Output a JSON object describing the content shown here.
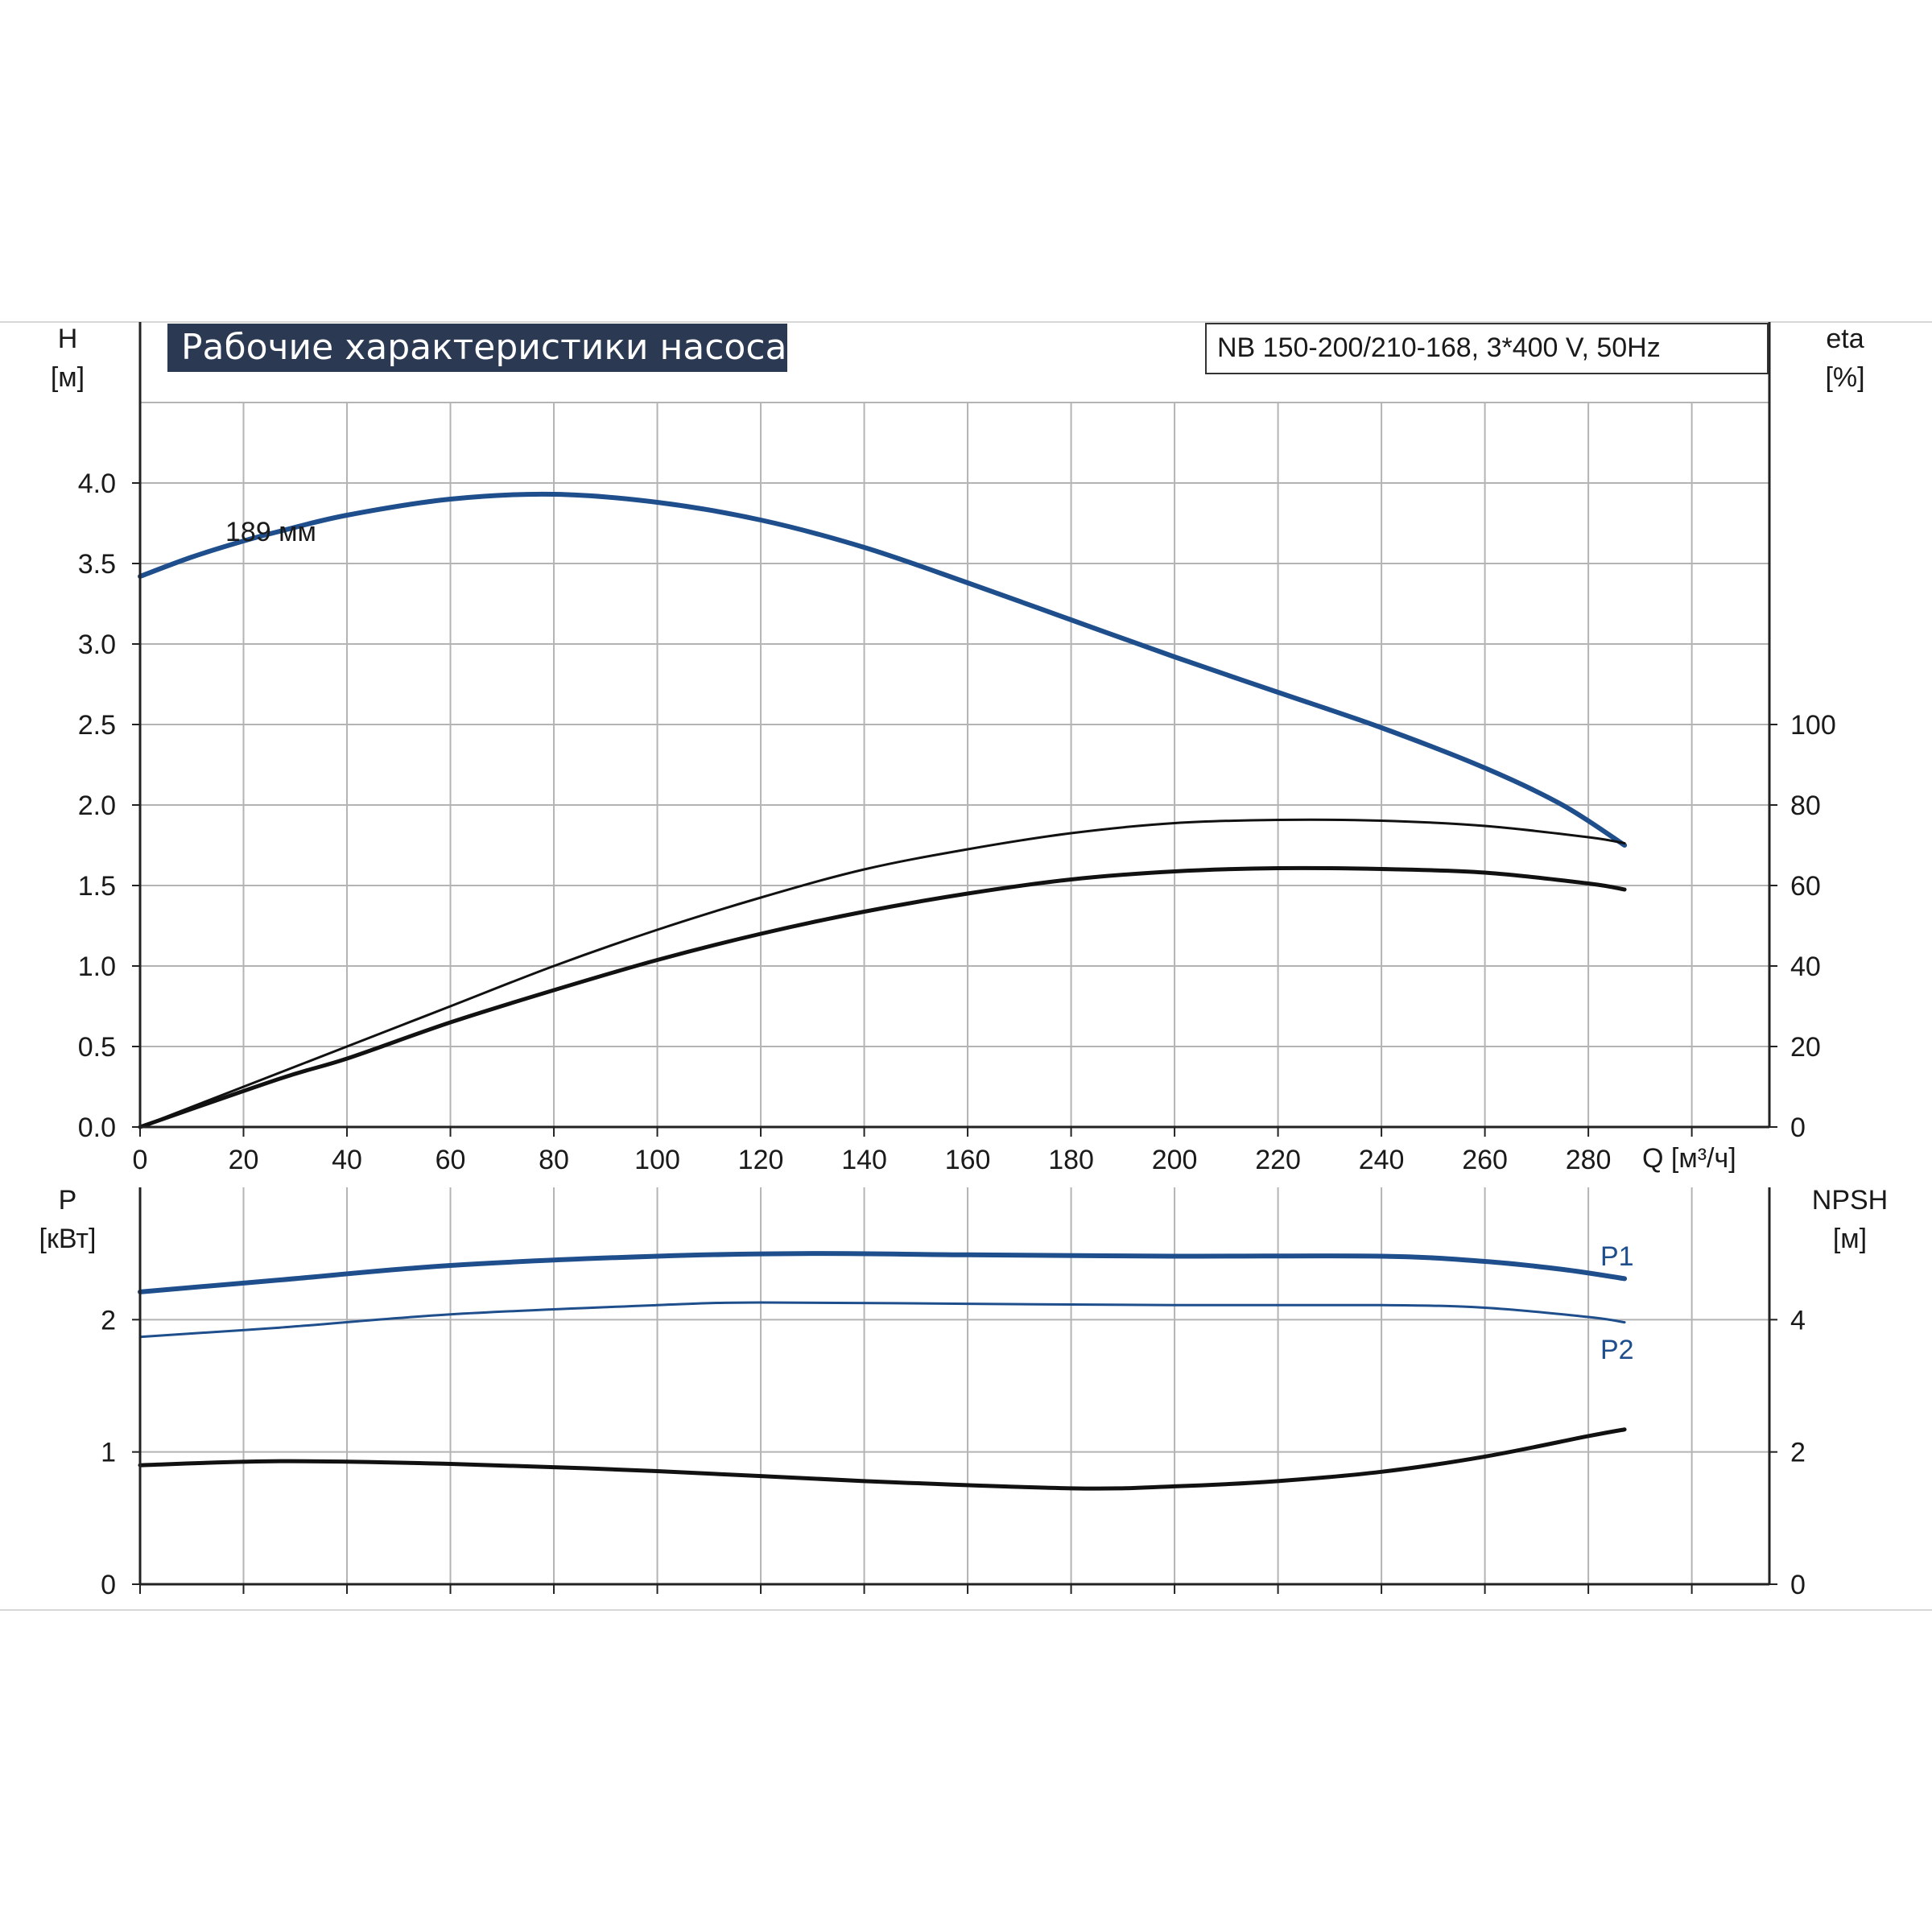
{
  "title": "Рабочие характеристики насоса",
  "model": "NB 150-200/210-168, 3*400 V, 50Hz",
  "colors": {
    "blue": "#1f4e8c",
    "black": "#111111",
    "grid": "#b4b4b4",
    "title_bg": "#2b3a52"
  },
  "chart_data": [
    {
      "type": "line",
      "name": "top",
      "x_label": "Q [м³/ч]",
      "x_ticks": [
        "0",
        "20",
        "40",
        "60",
        "80",
        "100",
        "120",
        "140",
        "160",
        "180",
        "200",
        "220",
        "240",
        "260",
        "280"
      ],
      "xlim": [
        0,
        315
      ],
      "left_axis": {
        "label_line1": "H",
        "label_line2": "[м]",
        "ticks": [
          "0.0",
          "0.5",
          "1.0",
          "1.5",
          "2.0",
          "2.5",
          "3.0",
          "3.5",
          "4.0"
        ],
        "ylim": [
          0,
          4.5
        ]
      },
      "right_axis": {
        "label_line1": "eta",
        "label_line2": "[%]",
        "ticks": [
          "0",
          "20",
          "40",
          "60",
          "80",
          "100"
        ],
        "ylim": [
          0,
          180
        ]
      },
      "curve_label": "189 мм",
      "series": [
        {
          "name": "H",
          "axis": "left",
          "color": "#1f4e8c",
          "x": [
            0,
            10,
            20,
            27,
            40,
            60,
            80,
            100,
            120,
            140,
            160,
            180,
            200,
            220,
            240,
            260,
            275,
            287
          ],
          "y": [
            3.42,
            3.54,
            3.64,
            3.7,
            3.8,
            3.9,
            3.93,
            3.88,
            3.77,
            3.6,
            3.38,
            3.15,
            2.92,
            2.7,
            2.48,
            2.23,
            2.0,
            1.75
          ]
        },
        {
          "name": "eta-1",
          "axis": "right",
          "color": "#111111",
          "x": [
            0,
            20,
            40,
            60,
            80,
            100,
            120,
            140,
            160,
            180,
            200,
            220,
            240,
            260,
            280,
            287
          ],
          "y": [
            0,
            10,
            20,
            30,
            40,
            49,
            57,
            64,
            69,
            73,
            75.5,
            76.3,
            76.1,
            74.8,
            72,
            70.5
          ]
        },
        {
          "name": "eta-2",
          "axis": "right",
          "color": "#111111",
          "x": [
            0,
            27,
            40,
            60,
            80,
            100,
            120,
            140,
            160,
            180,
            200,
            220,
            240,
            260,
            280,
            287
          ],
          "y": [
            0,
            12,
            17,
            26,
            34,
            41.5,
            48,
            53.5,
            58,
            61.5,
            63.5,
            64.3,
            64.1,
            63.2,
            60.5,
            59
          ]
        }
      ]
    },
    {
      "type": "line",
      "name": "bottom",
      "xlim": [
        0,
        315
      ],
      "left_axis": {
        "label_line1": "P",
        "label_line2": "[кВт]",
        "ticks": [
          "0",
          "1",
          "2"
        ],
        "ylim": [
          0,
          3
        ]
      },
      "right_axis": {
        "label_line1": "NPSH",
        "label_line2": "[м]",
        "ticks": [
          "0",
          "2",
          "4"
        ],
        "ylim": [
          0,
          6
        ]
      },
      "series": [
        {
          "name": "P1",
          "axis": "left",
          "color": "#1f4e8c",
          "x": [
            0,
            27,
            60,
            100,
            130,
            160,
            200,
            240,
            260,
            275,
            287
          ],
          "y": [
            2.21,
            2.3,
            2.41,
            2.48,
            2.5,
            2.49,
            2.48,
            2.48,
            2.44,
            2.38,
            2.31
          ]
        },
        {
          "name": "P2",
          "axis": "left",
          "color": "#1f4e8c",
          "x": [
            0,
            27,
            60,
            100,
            120,
            160,
            200,
            240,
            260,
            280,
            287
          ],
          "y": [
            1.87,
            1.94,
            2.04,
            2.11,
            2.13,
            2.12,
            2.11,
            2.11,
            2.09,
            2.02,
            1.98
          ]
        },
        {
          "name": "NPSH",
          "axis": "right",
          "color": "#111111",
          "x": [
            0,
            27,
            60,
            100,
            140,
            180,
            200,
            220,
            240,
            260,
            280,
            287
          ],
          "y": [
            1.8,
            1.86,
            1.82,
            1.71,
            1.56,
            1.45,
            1.48,
            1.56,
            1.7,
            1.93,
            2.24,
            2.34
          ]
        }
      ]
    }
  ]
}
